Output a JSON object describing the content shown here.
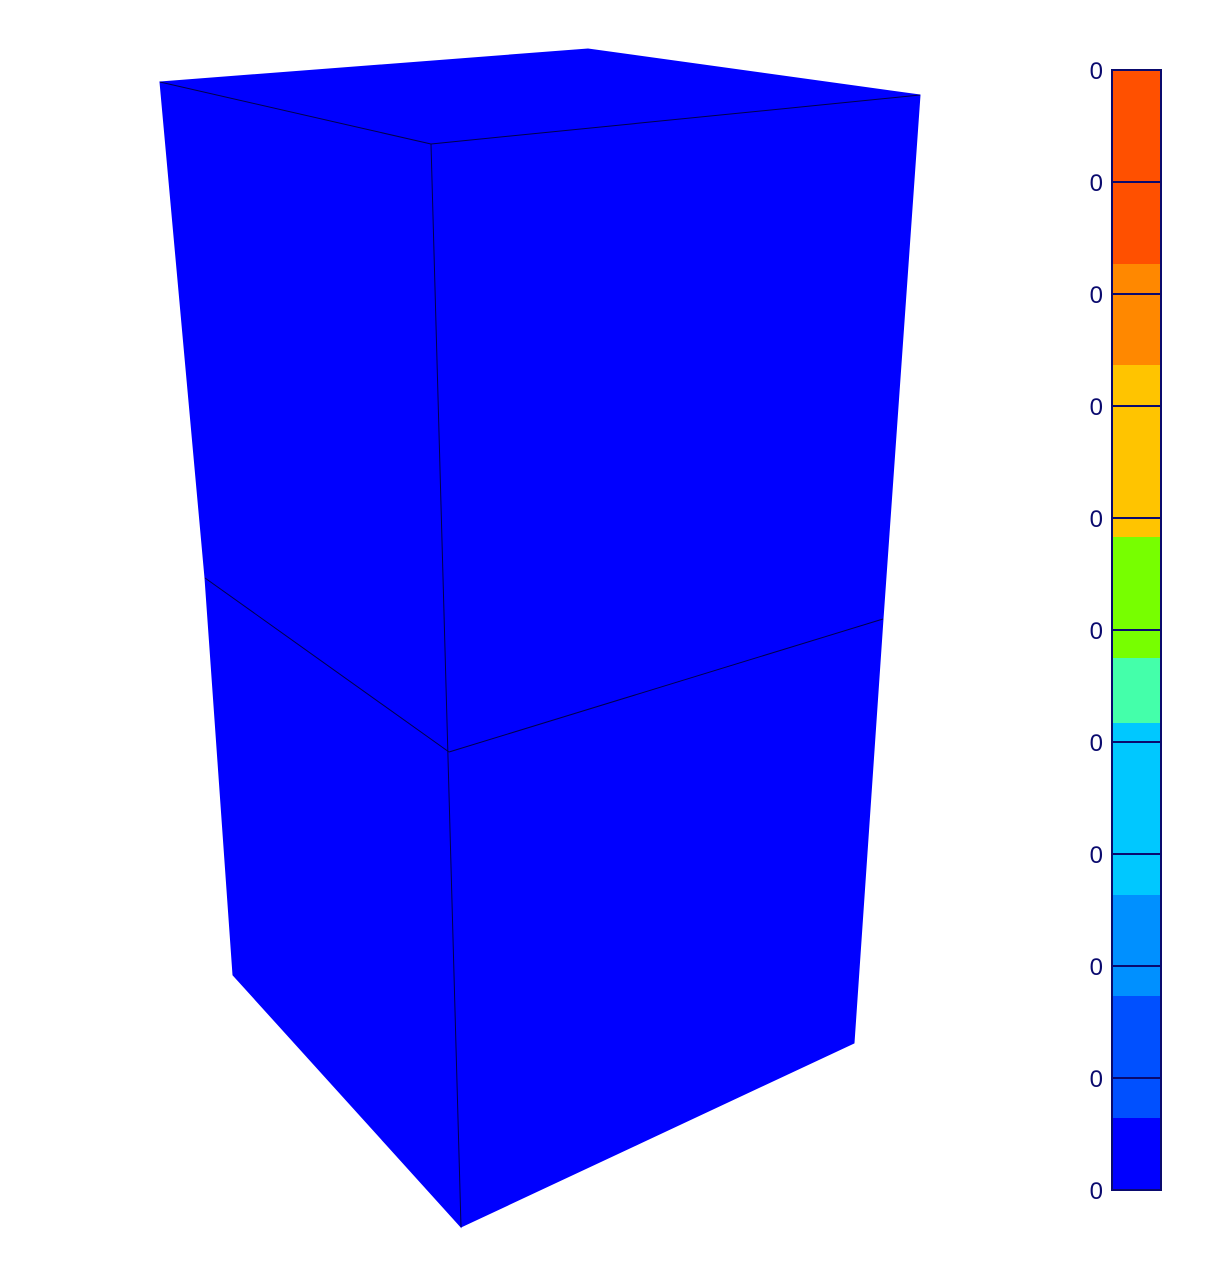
{
  "colors": {
    "mesh_face": "#0000ff",
    "mesh_edge": "#00004a",
    "legend_outline": "#0a0a6e",
    "tick_label": "#0a0a6e"
  },
  "model": {
    "elements": [
      "upper-hexahedron",
      "lower-hexahedron"
    ]
  },
  "legend": {
    "bands": [
      {
        "color": "#ff5000"
      },
      {
        "color": "#ff8800"
      },
      {
        "color": "#ffc400"
      },
      {
        "color": "#77ff00"
      },
      {
        "color": "#44ffaa"
      },
      {
        "color": "#00c8ff"
      },
      {
        "color": "#0090ff"
      },
      {
        "color": "#0050ff"
      },
      {
        "color": "#0000ff"
      }
    ],
    "tick_labels": [
      "0",
      "0",
      "0",
      "0",
      "0",
      "0",
      "0",
      "0",
      "0",
      "0",
      "0"
    ]
  }
}
